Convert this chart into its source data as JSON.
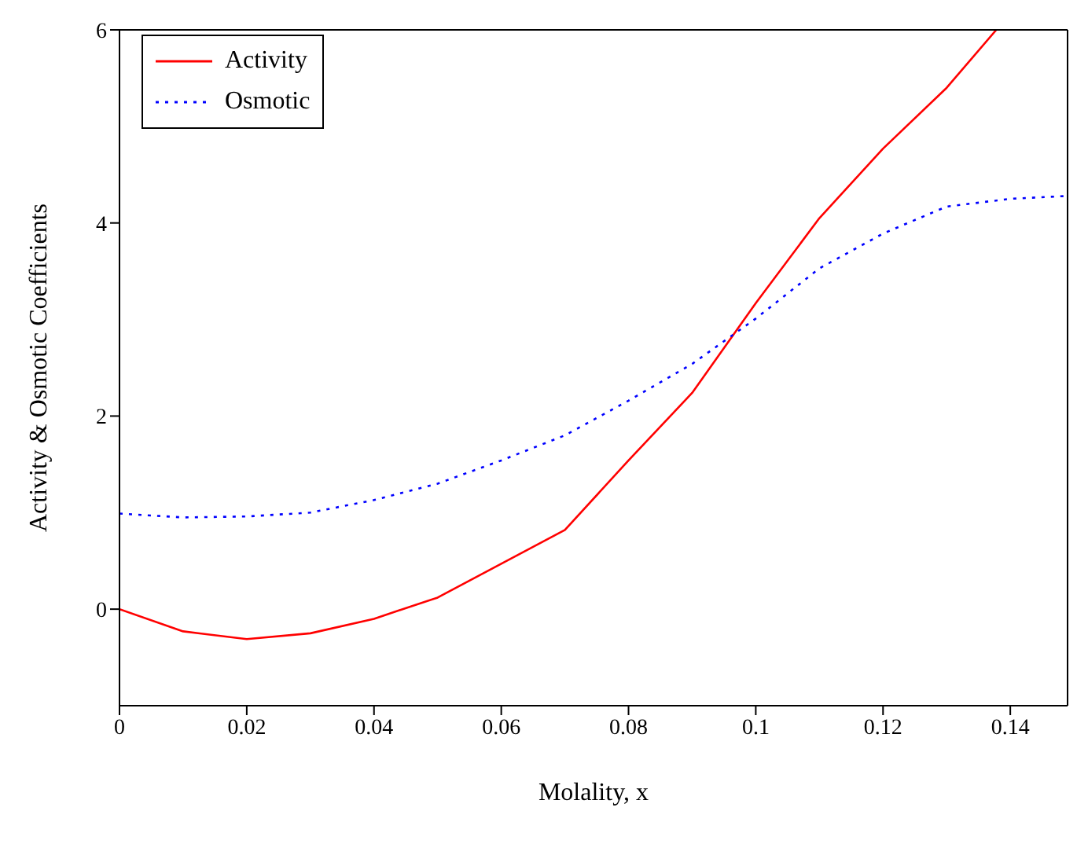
{
  "chart_data": {
    "type": "line",
    "xlabel": "Molality, x",
    "ylabel": "Activity & Osmotic Coefficients",
    "xlim": [
      0,
      0.149
    ],
    "ylim": [
      -1,
      6
    ],
    "xticks": [
      0,
      0.02,
      0.04,
      0.06,
      0.08,
      0.1,
      0.12,
      0.14
    ],
    "yticks": [
      0,
      2,
      4,
      6
    ],
    "legend": "top left",
    "marker": "none",
    "series": [
      {
        "name": "Activity",
        "color": "#ff0000",
        "line_style": "solid",
        "x": [
          0,
          0.01,
          0.02,
          0.03,
          0.04,
          0.05,
          0.06,
          0.07,
          0.08,
          0.09,
          0.1,
          0.11,
          0.12,
          0.13,
          0.1378
        ],
        "values": [
          0,
          -0.23,
          -0.31,
          -0.25,
          -0.1,
          0.12,
          0.47,
          0.82,
          1.54,
          2.24,
          3.17,
          4.05,
          4.77,
          5.4,
          6
        ]
      },
      {
        "name": "Osmotic",
        "color": "#0000ff",
        "line_style": "dotted",
        "x": [
          0,
          0.01,
          0.02,
          0.03,
          0.04,
          0.05,
          0.06,
          0.07,
          0.08,
          0.09,
          0.1,
          0.11,
          0.12,
          0.13,
          0.14,
          0.149
        ],
        "values": [
          0.99,
          0.95,
          0.96,
          1.0,
          1.13,
          1.3,
          1.54,
          1.8,
          2.16,
          2.54,
          3.01,
          3.53,
          3.89,
          4.17,
          4.25,
          4.28
        ]
      }
    ]
  }
}
